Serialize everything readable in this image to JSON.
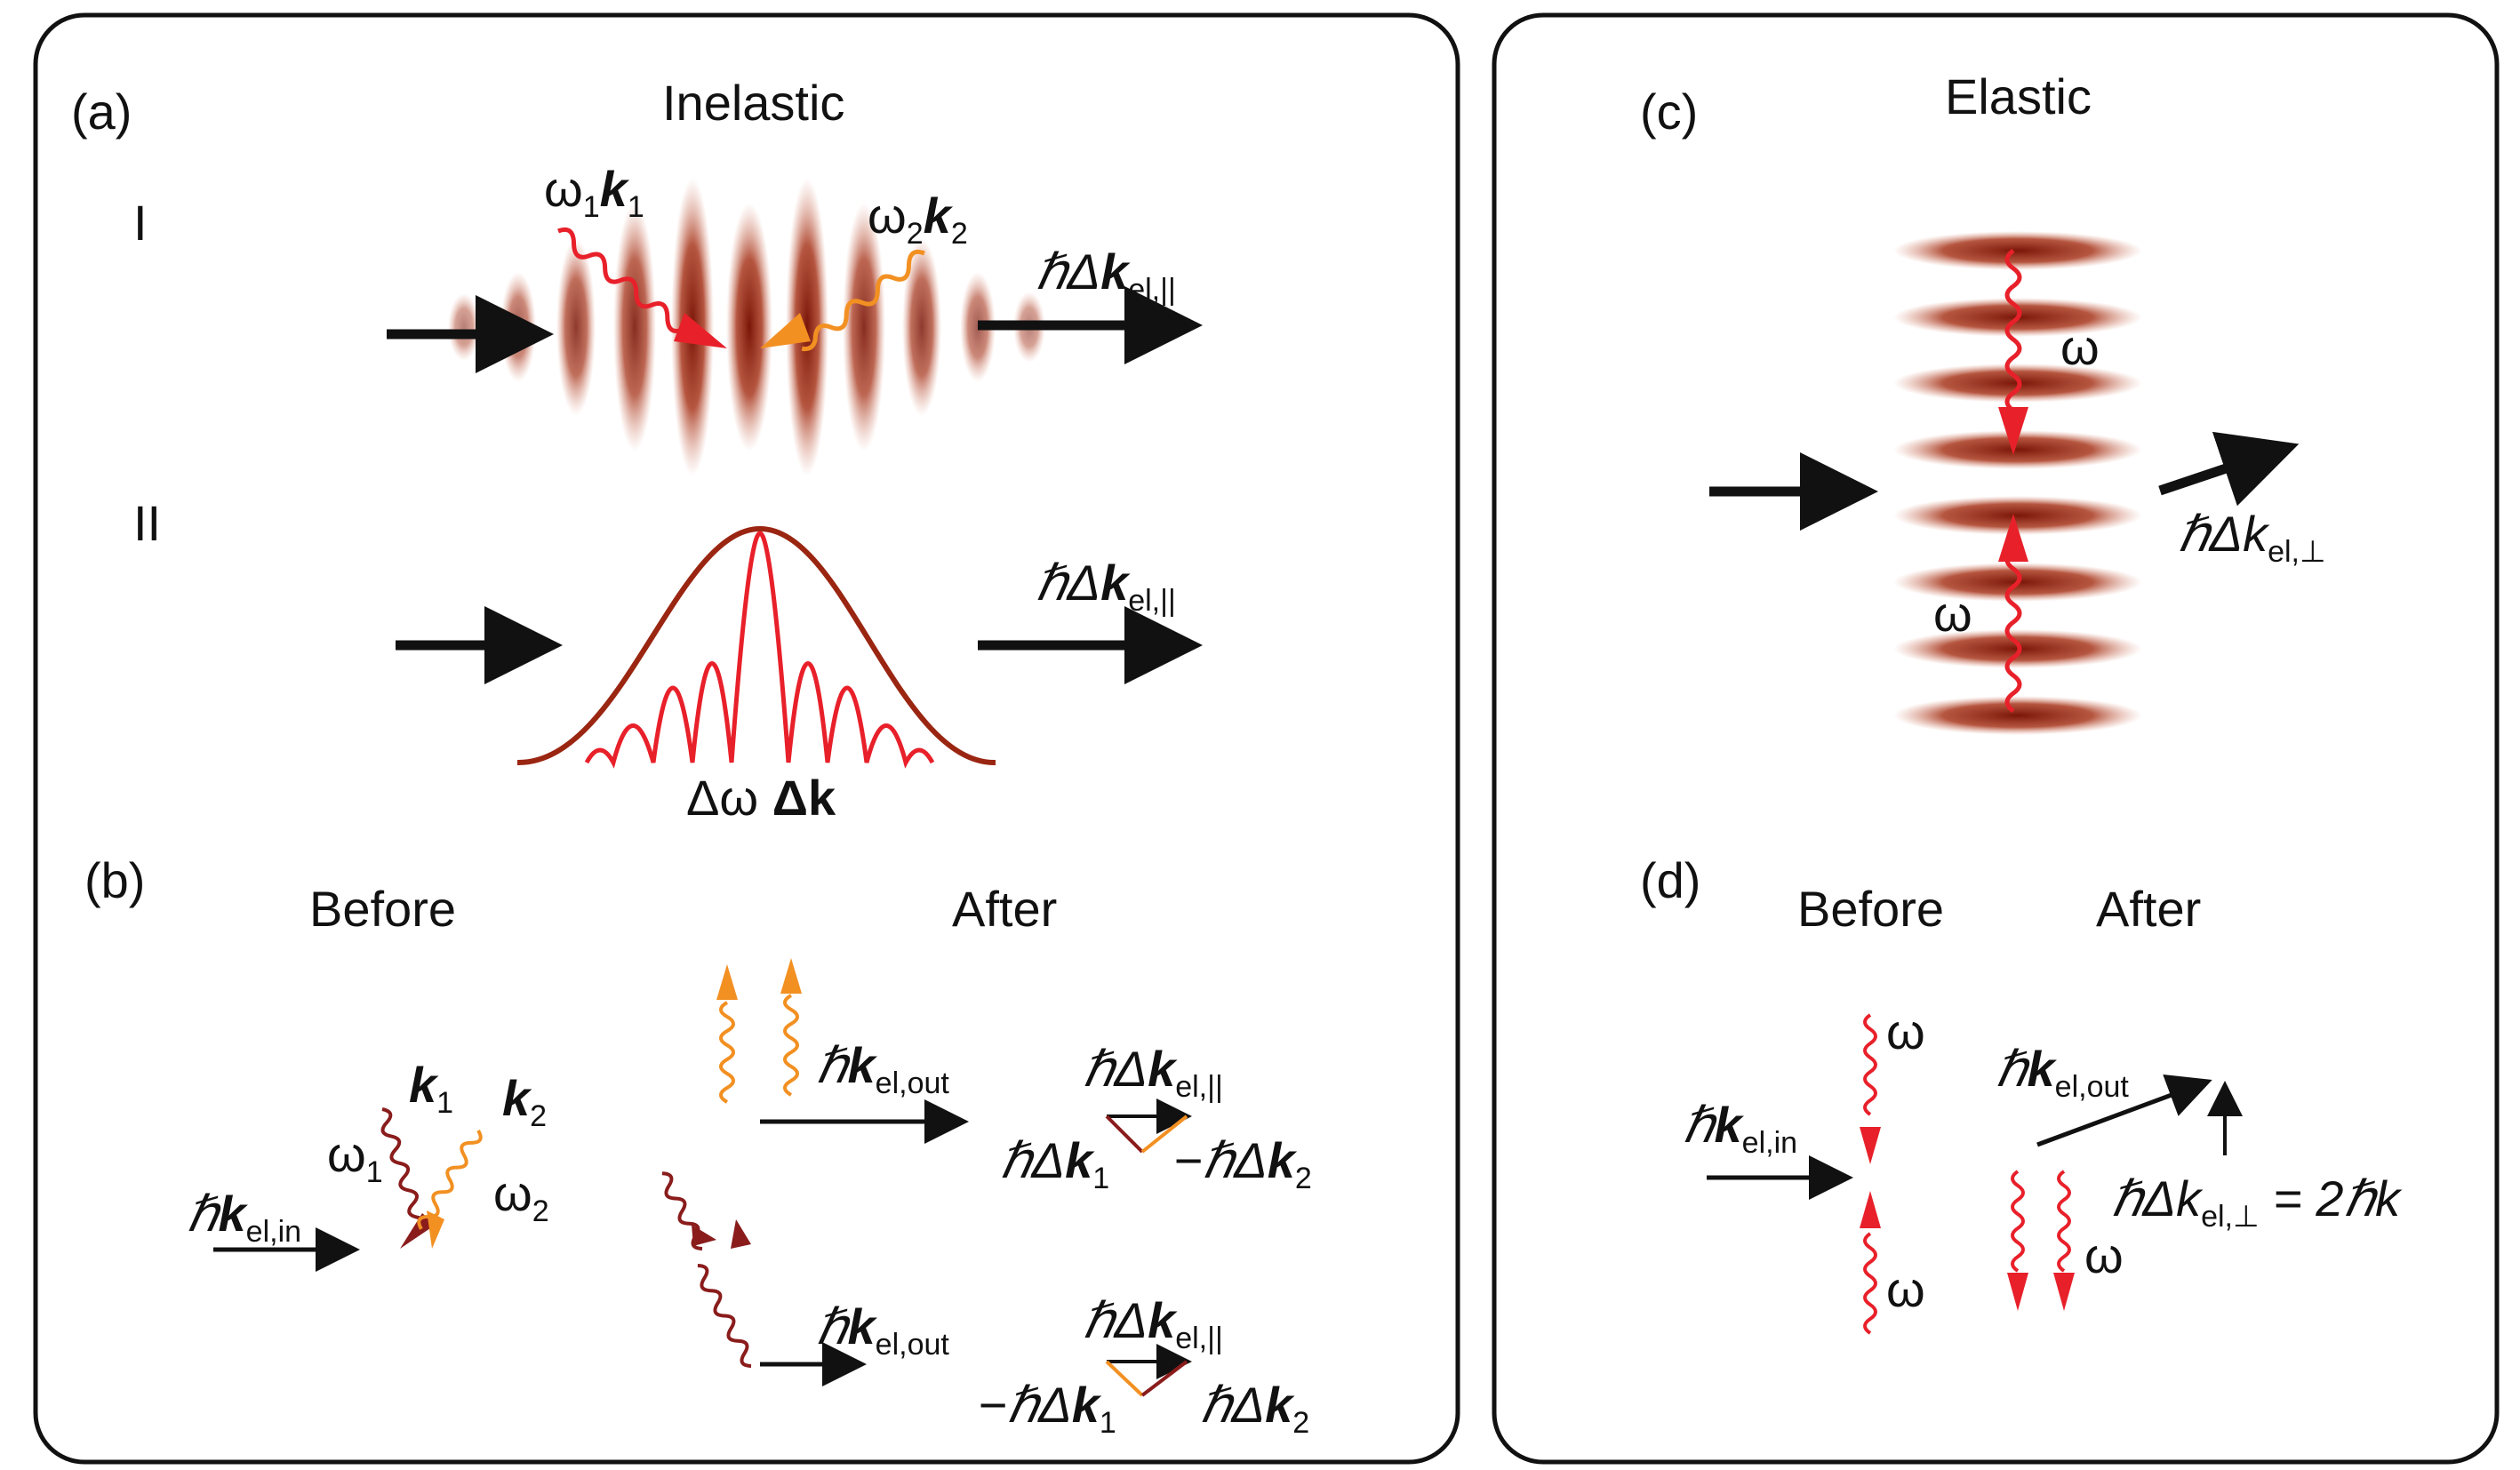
{
  "colors": {
    "dark_red": "#8a1c1c",
    "red": "#e8202a",
    "orange": "#f29022",
    "brown": "#a02a14",
    "black": "#111111"
  },
  "panel_a": {
    "letter": "(a)",
    "title": "Inelastic",
    "row1_label": "I",
    "row2_label": "II",
    "photon1_omega": "ω",
    "photon1_omega_sub": "1",
    "photon1_k": "k",
    "photon1_k_sub": "1",
    "photon2_omega": "ω",
    "photon2_omega_sub": "2",
    "photon2_k": "k",
    "photon2_k_sub": "2",
    "out_prefix": "ℏΔ",
    "out_k": "k",
    "out_sub": "el,||",
    "spectrum_label_omega": "Δω ",
    "spectrum_label_k": "Δk"
  },
  "panel_b": {
    "letter": "(b)",
    "before": "Before",
    "after": "After",
    "k1": "k",
    "k1_sub": "1",
    "k2": "k",
    "k2_sub": "2",
    "omega1": "ω",
    "omega1_sub": "1",
    "omega2": "ω",
    "omega2_sub": "2",
    "in_prefix": "ℏ",
    "in_k": "k",
    "in_sub": "el,in",
    "out_prefix": "ℏ",
    "out_k": "k",
    "out_sub": "el,out",
    "delta_prefix": "ℏΔ",
    "delta_k": "k",
    "delta_sub": "el,||",
    "top_left_prefix": "ℏΔ",
    "top_left_k": "k",
    "top_left_sub": "1",
    "top_right_prefix": "−ℏΔ",
    "top_right_k": "k",
    "top_right_sub": "2",
    "bot_left_prefix": "−ℏΔ",
    "bot_left_k": "k",
    "bot_left_sub": "1",
    "bot_right_prefix": "ℏΔ",
    "bot_right_k": "k",
    "bot_right_sub": "2"
  },
  "panel_c": {
    "letter": "(c)",
    "title": "Elastic",
    "omega_top": "ω",
    "omega_bottom": "ω",
    "out_prefix": "ℏΔ",
    "out_k": "k",
    "out_sub": "el,⊥"
  },
  "panel_d": {
    "letter": "(d)",
    "before": "Before",
    "after": "After",
    "omega_top": "ω",
    "omega_bottom": "ω",
    "omega_right": "ω",
    "in_prefix": "ℏ",
    "in_k": "k",
    "in_sub": "el,in",
    "out_prefix": "ℏ",
    "out_k": "k",
    "out_sub": "el,out",
    "perp_prefix": "ℏΔ",
    "perp_k": "k",
    "perp_sub": "el,⊥",
    "perp_equals": " = 2ℏ",
    "perp_rhs_k": "k"
  }
}
